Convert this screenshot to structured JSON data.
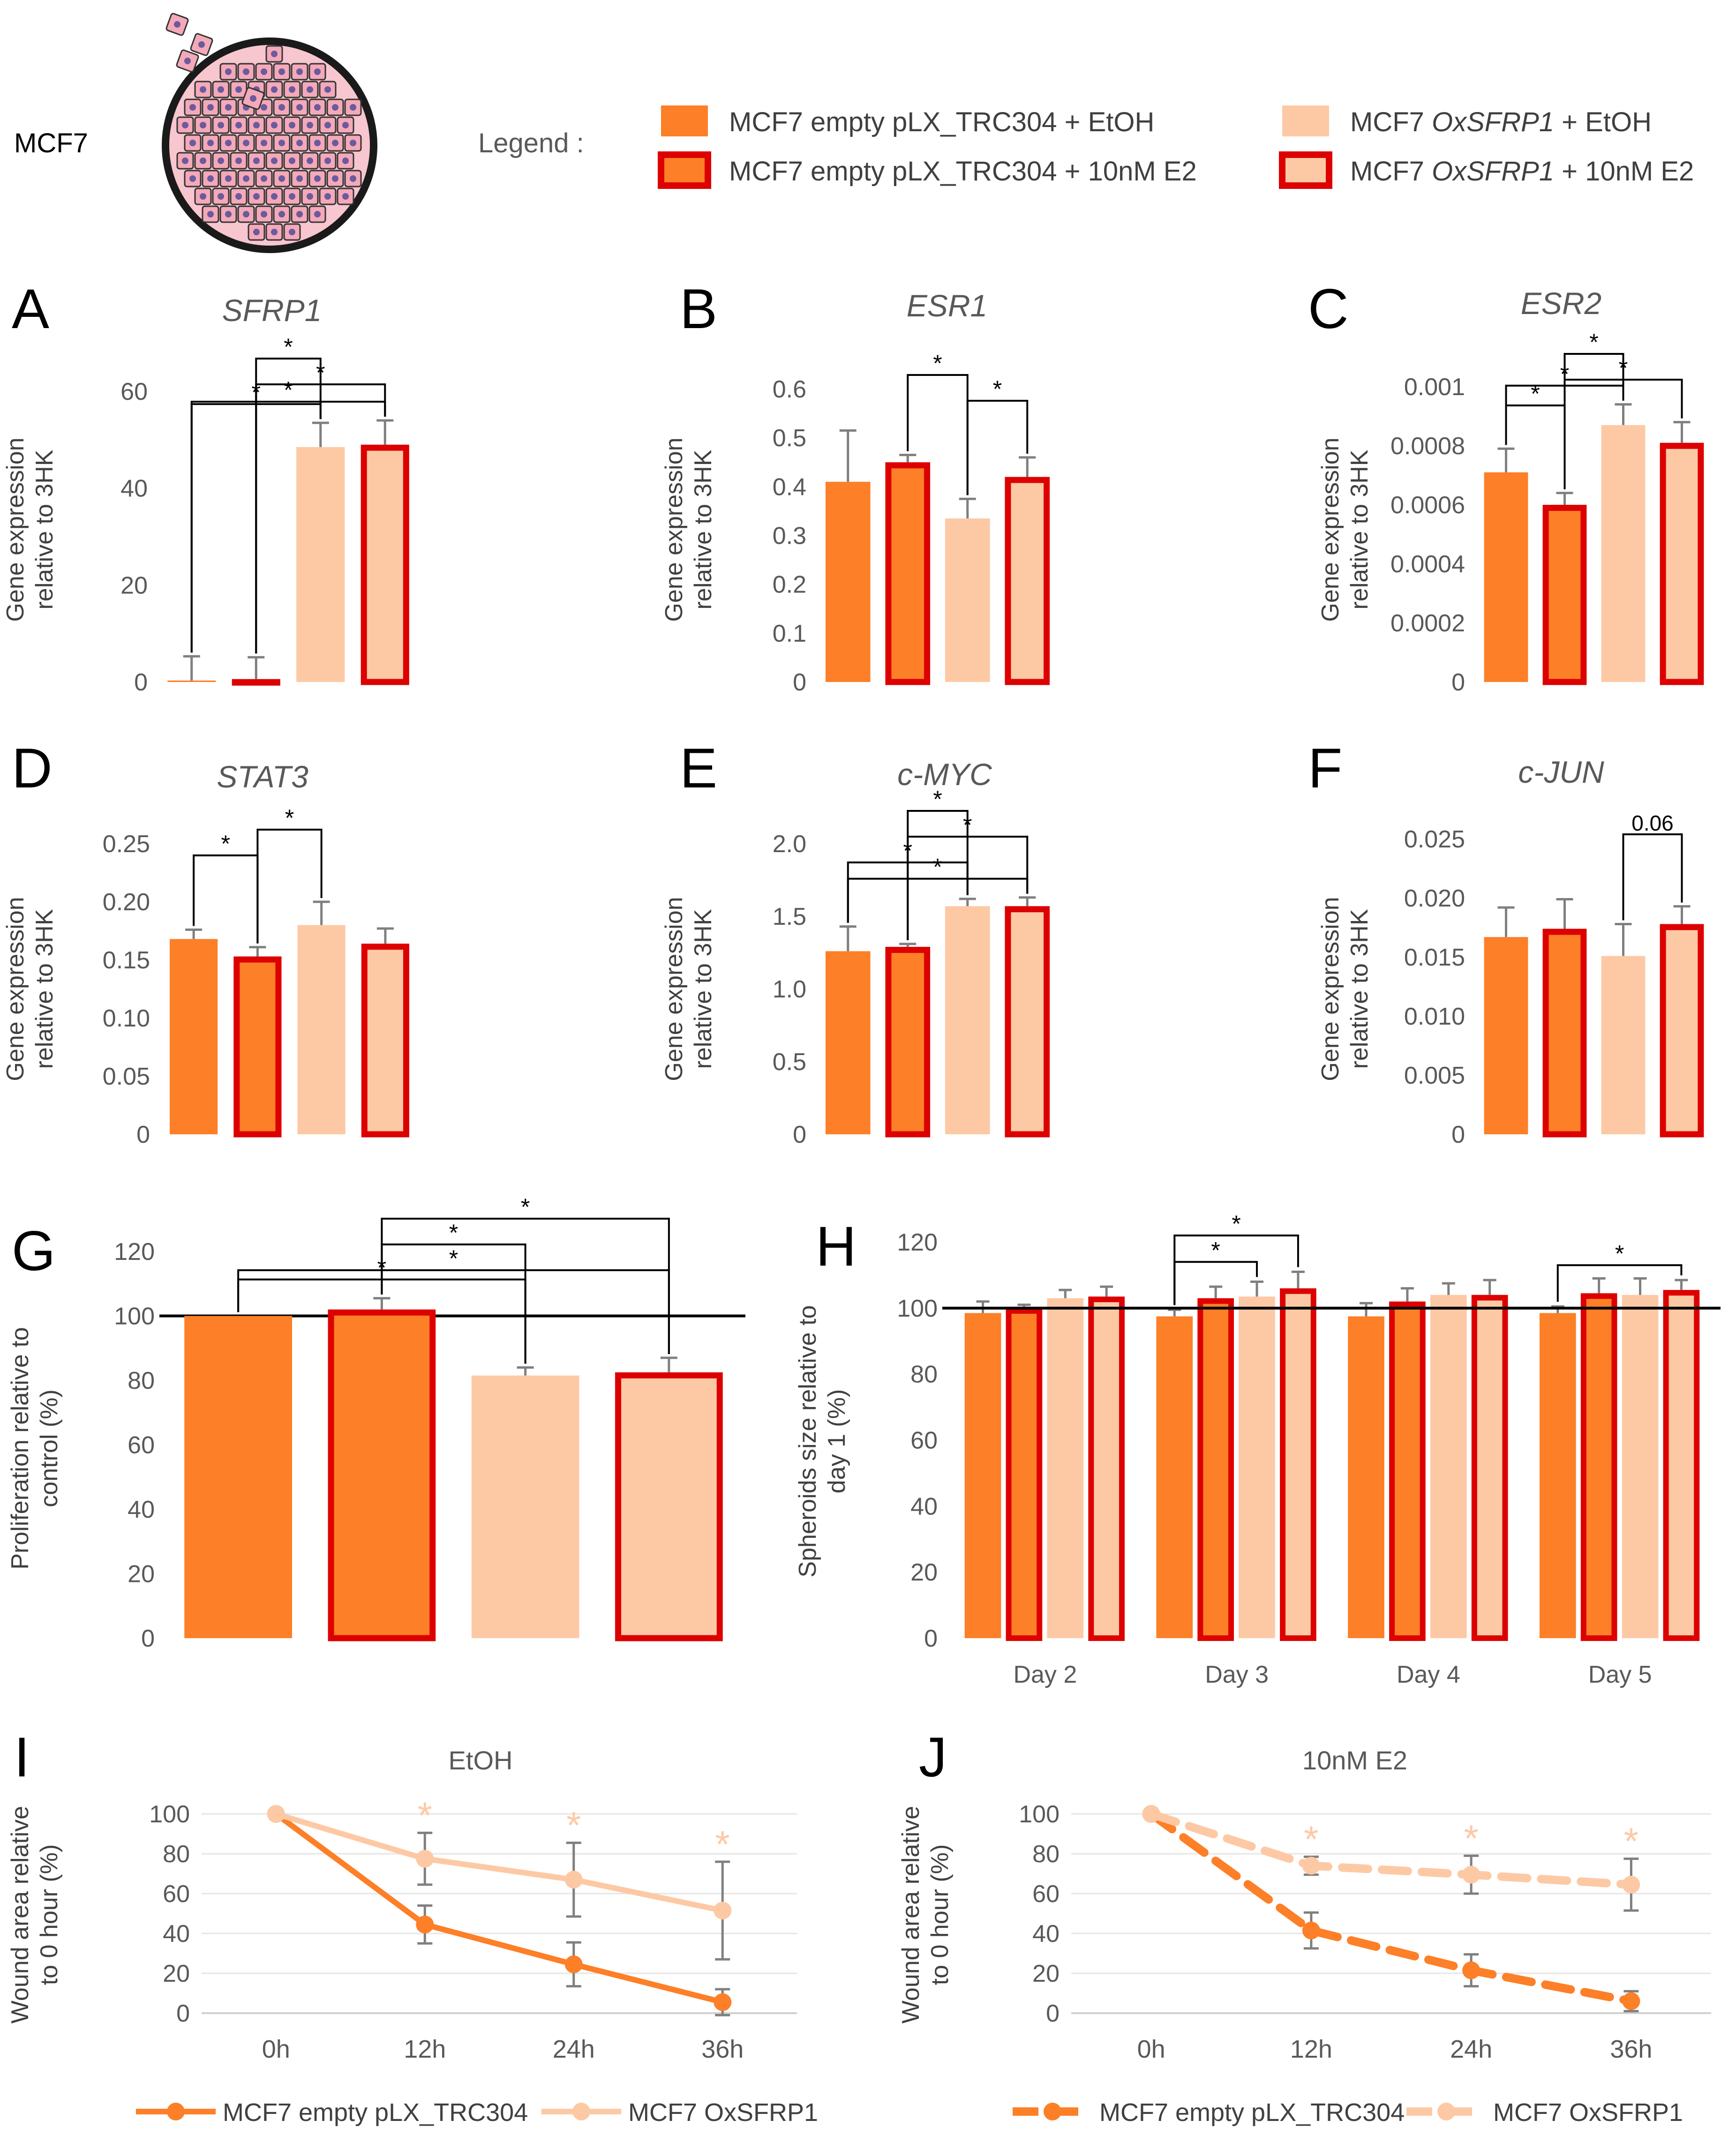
{
  "header": {
    "cell_line_label": "MCF7",
    "legend_label": "Legend :",
    "legend_items": [
      {
        "pre": "MCF7 empty pLX_TRC304 + EtOH",
        "italic": "",
        "post": ""
      },
      {
        "pre": "MCF7 empty pLX_TRC304 + 10nM E2",
        "italic": "",
        "post": ""
      },
      {
        "pre": "MCF7 ",
        "italic": "OxSFRP1",
        "post": " + EtOH"
      },
      {
        "pre": "MCF7 ",
        "italic": "OxSFRP1",
        "post": " + 10nM E2"
      }
    ]
  },
  "colors": {
    "dark_orange": "#FD7F27",
    "light_peach": "#FDC9A5",
    "red_outline": "#DD0000",
    "axis_text": "#595959",
    "bracket": "#000000"
  },
  "chart_data": [
    {
      "panel": "A",
      "type": "bar",
      "title": "SFRP1",
      "ylabel": [
        "Gene expression",
        "relative to 3HK"
      ],
      "ylim": [
        0,
        60
      ],
      "ticks": [
        0,
        20,
        40,
        60
      ],
      "tick_labels": [
        "0",
        "20",
        "40",
        "60"
      ],
      "categories": [
        "MCF7 empty pLX_TRC304 + EtOH",
        "MCF7 empty pLX_TRC304 + 10nM E2",
        "MCF7 OxSFRP1 + EtOH",
        "MCF7 OxSFRP1 + 10nM E2"
      ],
      "values": [
        0.3,
        0.6,
        48.5,
        49
      ],
      "errors": [
        5,
        4.5,
        5,
        5
      ],
      "annotations": [
        {
          "from": 1,
          "to": 2,
          "label": "*"
        },
        {
          "from": 1,
          "to": 3,
          "label": "*"
        },
        {
          "from": 0,
          "to": 2,
          "label": "*"
        },
        {
          "from": 0,
          "to": 3,
          "label": "*"
        }
      ]
    },
    {
      "panel": "B",
      "type": "bar",
      "title": "ESR1",
      "ylabel": [
        "Gene expression",
        "relative to 3HK"
      ],
      "ylim": [
        0,
        0.6
      ],
      "ticks": [
        0,
        0.1,
        0.2,
        0.3,
        0.4,
        0.5,
        0.6
      ],
      "tick_labels": [
        "0",
        "0.1",
        "0.2",
        "0.3",
        "0.4",
        "0.5",
        "0.6"
      ],
      "categories": [
        "MCF7 empty pLX_TRC304 + EtOH",
        "MCF7 empty pLX_TRC304 + 10nM E2",
        "MCF7 OxSFRP1 + EtOH",
        "MCF7 OxSFRP1 + 10nM E2"
      ],
      "values": [
        0.41,
        0.45,
        0.335,
        0.42
      ],
      "errors": [
        0.105,
        0.015,
        0.04,
        0.04
      ],
      "annotations": [
        {
          "from": 1,
          "to": 2,
          "label": "*"
        },
        {
          "from": 2,
          "to": 3,
          "label": "*"
        }
      ]
    },
    {
      "panel": "C",
      "type": "bar",
      "title": "ESR2",
      "ylabel": [
        "Gene expression",
        "relative to 3HK"
      ],
      "ylim": [
        0,
        0.001
      ],
      "ticks": [
        0,
        0.0002,
        0.0004,
        0.0006,
        0.0008,
        0.001
      ],
      "tick_labels": [
        "0",
        "0.0002",
        "0.0004",
        "0.0006",
        "0.0008",
        "0.001"
      ],
      "categories": [
        "MCF7 empty pLX_TRC304 + EtOH",
        "MCF7 empty pLX_TRC304 + 10nM E2",
        "MCF7 OxSFRP1 + EtOH",
        "MCF7 OxSFRP1 + 10nM E2"
      ],
      "values": [
        0.00071,
        0.0006,
        0.00087,
        0.00081
      ],
      "errors": [
        8e-05,
        4e-05,
        7e-05,
        7e-05
      ],
      "annotations": [
        {
          "from": 1,
          "to": 2,
          "label": "*"
        },
        {
          "from": 1,
          "to": 3,
          "label": "*"
        },
        {
          "from": 0,
          "to": 1,
          "label": "*"
        },
        {
          "from": 0,
          "to": 2,
          "label": "*"
        }
      ]
    },
    {
      "panel": "D",
      "type": "bar",
      "title": "STAT3",
      "ylabel": [
        "Gene expression",
        "relative to 3HK"
      ],
      "ylim": [
        0,
        0.25
      ],
      "ticks": [
        0,
        0.05,
        0.1,
        0.15,
        0.2,
        0.25
      ],
      "tick_labels": [
        "0",
        "0.05",
        "0.10",
        "0.15",
        "0.20",
        "0.25"
      ],
      "categories": [
        "MCF7 empty pLX_TRC304 + EtOH",
        "MCF7 empty pLX_TRC304 + 10nM E2",
        "MCF7 OxSFRP1 + EtOH",
        "MCF7 OxSFRP1 + 10nM E2"
      ],
      "values": [
        0.168,
        0.153,
        0.18,
        0.164
      ],
      "errors": [
        0.008,
        0.008,
        0.02,
        0.013
      ],
      "annotations": [
        {
          "from": 1,
          "to": 2,
          "label": "*"
        },
        {
          "from": 0,
          "to": 1,
          "label": "*"
        }
      ]
    },
    {
      "panel": "E",
      "type": "bar",
      "title": "c-MYC",
      "ylabel": [
        "Gene expression",
        "relative to 3HK"
      ],
      "ylim": [
        0,
        2.0
      ],
      "ticks": [
        0,
        0.5,
        1.0,
        1.5,
        2.0
      ],
      "tick_labels": [
        "0",
        "0.5",
        "1.0",
        "1.5",
        "2.0"
      ],
      "categories": [
        "MCF7 empty pLX_TRC304 + EtOH",
        "MCF7 empty pLX_TRC304 + 10nM E2",
        "MCF7 OxSFRP1 + EtOH",
        "MCF7 OxSFRP1 + 10nM E2"
      ],
      "values": [
        1.26,
        1.29,
        1.57,
        1.57
      ],
      "errors": [
        0.17,
        0.02,
        0.05,
        0.06
      ],
      "annotations": [
        {
          "from": 1,
          "to": 2,
          "label": "*"
        },
        {
          "from": 1,
          "to": 3,
          "label": "*"
        },
        {
          "from": 0,
          "to": 2,
          "label": "*"
        },
        {
          "from": 0,
          "to": 3,
          "label": "*"
        }
      ]
    },
    {
      "panel": "F",
      "type": "bar",
      "title": "c-JUN",
      "ylabel": [
        "Gene expression",
        "relative to 3HK"
      ],
      "ylim": [
        0,
        0.025
      ],
      "ticks": [
        0,
        0.005,
        0.01,
        0.015,
        0.02,
        0.025
      ],
      "tick_labels": [
        "0",
        "0.005",
        "0.010",
        "0.015",
        "0.020",
        "0.025"
      ],
      "categories": [
        "MCF7 empty pLX_TRC304 + EtOH",
        "MCF7 empty pLX_TRC304 + 10nM E2",
        "MCF7 OxSFRP1 + EtOH",
        "MCF7 OxSFRP1 + 10nM E2"
      ],
      "values": [
        0.0167,
        0.0174,
        0.0151,
        0.0178
      ],
      "errors": [
        0.0025,
        0.0025,
        0.0027,
        0.0015
      ],
      "annotations": [
        {
          "from": 2,
          "to": 3,
          "label": "0.06"
        }
      ]
    },
    {
      "panel": "G",
      "type": "bar",
      "title": "",
      "ylabel": [
        "Proliferation relative to",
        "control (%)"
      ],
      "ylim": [
        0,
        120
      ],
      "ticks": [
        0,
        20,
        40,
        60,
        80,
        100,
        120
      ],
      "tick_labels": [
        "0",
        "20",
        "40",
        "60",
        "80",
        "100",
        "120"
      ],
      "reference_line": 100,
      "categories": [
        "MCF7 empty pLX_TRC304 + EtOH",
        "MCF7 empty pLX_TRC304 + 10nM E2",
        "MCF7 OxSFRP1 + EtOH",
        "MCF7 OxSFRP1 + 10nM E2"
      ],
      "values": [
        100,
        102,
        81.5,
        82.5
      ],
      "errors": [
        0,
        3.5,
        2.5,
        4.5
      ],
      "annotations": [
        {
          "from": 1,
          "to": 3,
          "label": "*"
        },
        {
          "from": 1,
          "to": 2,
          "label": "*"
        },
        {
          "from": 0,
          "to": 3,
          "label": "*"
        },
        {
          "from": 0,
          "to": 2,
          "label": "*"
        }
      ]
    },
    {
      "panel": "H",
      "type": "bar",
      "title": "",
      "ylabel": [
        "Spheroids size relative to",
        "day 1 (%)"
      ],
      "ylim": [
        0,
        120
      ],
      "ticks": [
        0,
        20,
        40,
        60,
        80,
        100,
        120
      ],
      "tick_labels": [
        "0",
        "20",
        "40",
        "60",
        "80",
        "100",
        "120"
      ],
      "reference_line": 100,
      "categories": [
        "Day 2",
        "Day 3",
        "Day 4",
        "Day 5"
      ],
      "series": [
        {
          "name": "MCF7 empty pLX_TRC304 + EtOH",
          "values": [
            98.5,
            97.5,
            97.5,
            98.5
          ],
          "errors": [
            3.5,
            2,
            4,
            2
          ]
        },
        {
          "name": "MCF7 empty pLX_TRC304 + 10nM E2",
          "values": [
            100,
            103,
            102,
            104.5
          ],
          "errors": [
            1,
            3.5,
            4,
            4.5
          ]
        },
        {
          "name": "MCF7 OxSFRP1 + EtOH",
          "values": [
            103,
            103.5,
            104,
            104
          ],
          "errors": [
            2.5,
            4.5,
            3.5,
            5
          ]
        },
        {
          "name": "MCF7 OxSFRP1 + 10nM E2",
          "values": [
            103.5,
            106,
            104,
            105.5
          ],
          "errors": [
            3,
            5,
            4.5,
            3
          ]
        }
      ],
      "annotations": [
        {
          "group": 1,
          "from": 0,
          "to": 3,
          "label": "*"
        },
        {
          "group": 1,
          "from": 0,
          "to": 2,
          "label": "*"
        },
        {
          "group": 3,
          "from": 0,
          "to": 3,
          "label": "*"
        }
      ]
    },
    {
      "panel": "I",
      "type": "line",
      "title": "EtOH",
      "ylabel": [
        "Wound area relative",
        "to 0 hour (%)"
      ],
      "ylim": [
        0,
        100
      ],
      "ticks": [
        0,
        20,
        40,
        60,
        80,
        100
      ],
      "tick_labels": [
        "0",
        "20",
        "40",
        "60",
        "80",
        "100"
      ],
      "x": [
        "0h",
        "12h",
        "24h",
        "36h"
      ],
      "series": [
        {
          "name": "MCF7 empty pLX_TRC304",
          "values": [
            100,
            44.5,
            24.5,
            5.5
          ],
          "errors": [
            0,
            9.5,
            11,
            6.5
          ],
          "dashed": false
        },
        {
          "name": "MCF7 OxSFRP1",
          "values": [
            100,
            77.5,
            67,
            51.5
          ],
          "errors": [
            0,
            13,
            18.5,
            24.5
          ],
          "dashed": false
        }
      ],
      "significance_marks": [
        {
          "x": "12h",
          "label": "*"
        },
        {
          "x": "24h",
          "label": "*"
        },
        {
          "x": "36h",
          "label": "*"
        }
      ]
    },
    {
      "panel": "J",
      "type": "line",
      "title": "10nM E2",
      "ylabel": [
        "Wound area relative",
        "to 0 hour (%)"
      ],
      "ylim": [
        0,
        100
      ],
      "ticks": [
        0,
        20,
        40,
        60,
        80,
        100
      ],
      "tick_labels": [
        "0",
        "20",
        "40",
        "60",
        "80",
        "100"
      ],
      "x": [
        "0h",
        "12h",
        "24h",
        "36h"
      ],
      "series": [
        {
          "name": "MCF7 empty pLX_TRC304",
          "values": [
            100,
            41.5,
            21.5,
            6
          ],
          "errors": [
            0,
            9,
            8,
            5
          ],
          "dashed": true
        },
        {
          "name": "MCF7 OxSFRP1",
          "values": [
            100,
            74,
            69.5,
            64.5
          ],
          "errors": [
            0,
            4.5,
            9.5,
            13
          ],
          "dashed": true
        }
      ],
      "significance_marks": [
        {
          "x": "12h",
          "label": "*"
        },
        {
          "x": "24h",
          "label": "*"
        },
        {
          "x": "36h",
          "label": "*"
        }
      ]
    }
  ]
}
